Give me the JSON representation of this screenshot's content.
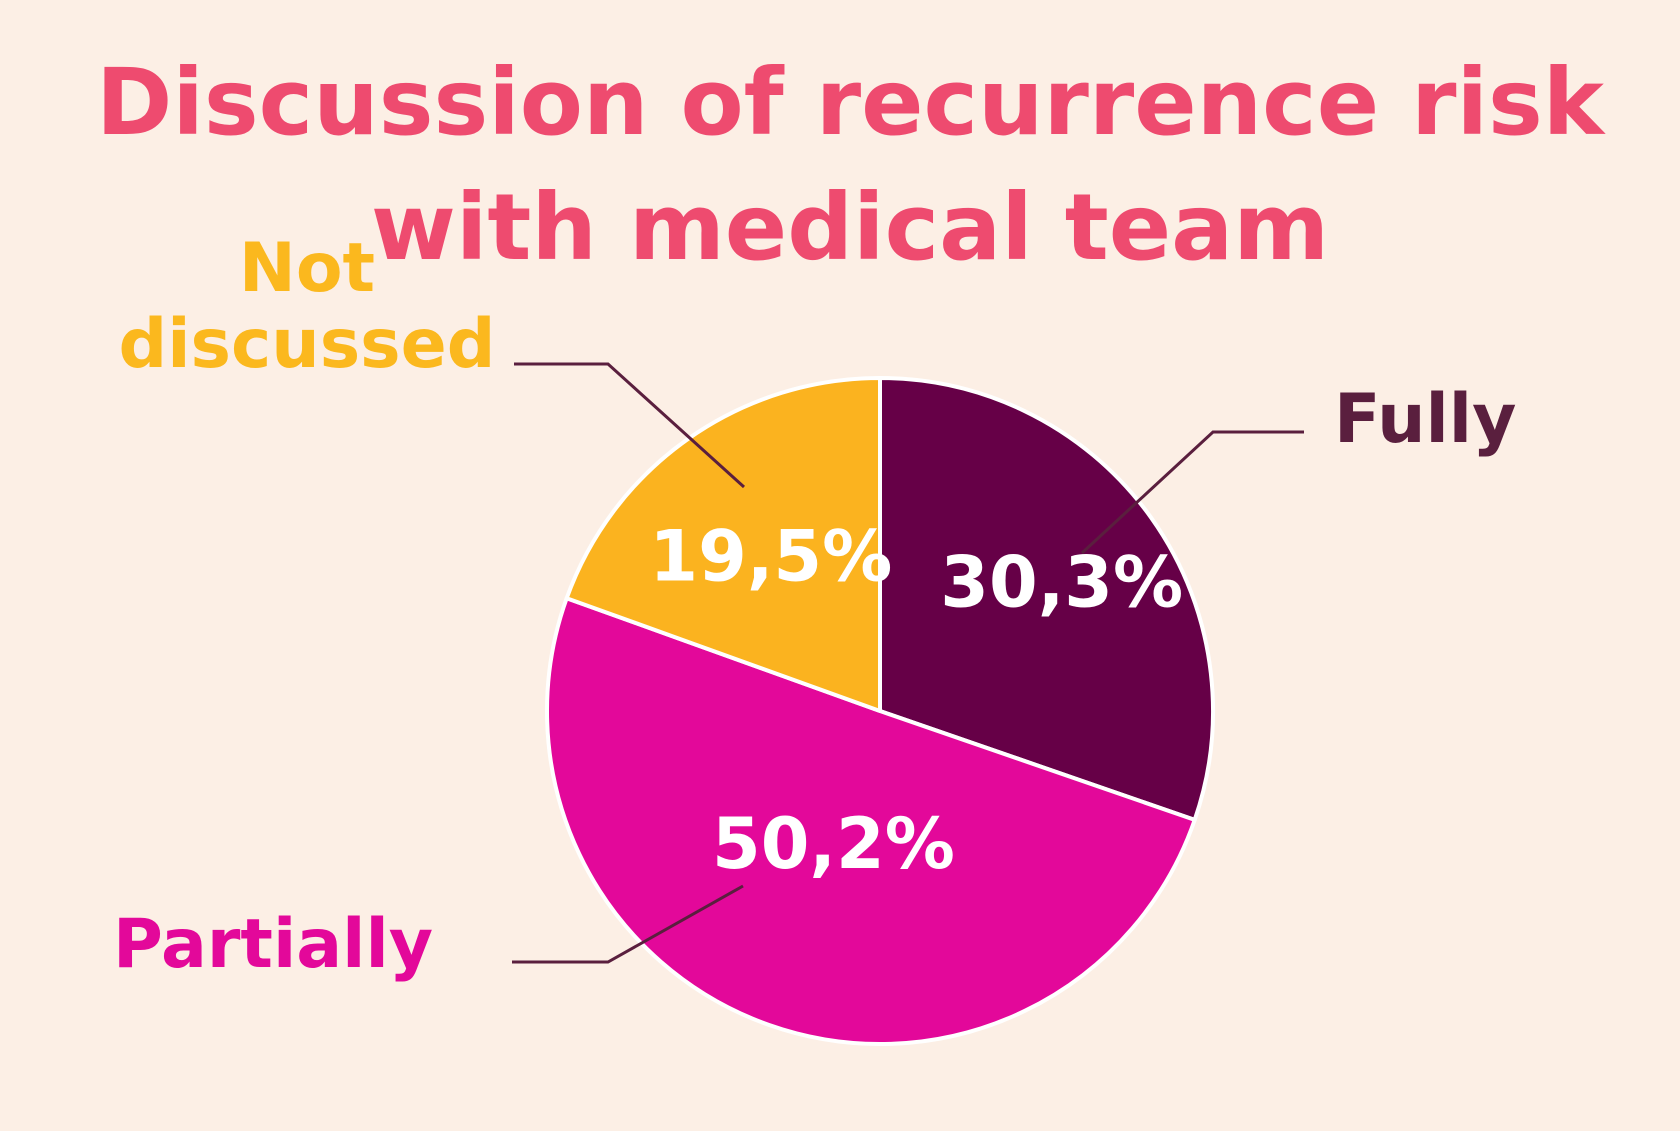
{
  "chart_data": {
    "type": "pie",
    "title_lines": [
      "Discussion of recurrence risk",
      "with medical team"
    ],
    "categories": [
      "Fully",
      "Partially",
      "Not discussed"
    ],
    "values": [
      30.3,
      50.2,
      19.5
    ],
    "value_labels": [
      "30,3%",
      "50,2%",
      "19,5%"
    ],
    "legend_lines": [
      [
        "Fully"
      ],
      [
        "Partially"
      ],
      [
        "Not",
        "discussed"
      ]
    ],
    "colors": [
      "#660047",
      "#e3089a",
      "#fbb31f"
    ],
    "label_colors": [
      "#5a1f3e",
      "#e3089a",
      "#fbb81e"
    ],
    "leader_color": "#5a1f3e",
    "start_angle_deg": 0,
    "direction": "clockwise"
  }
}
